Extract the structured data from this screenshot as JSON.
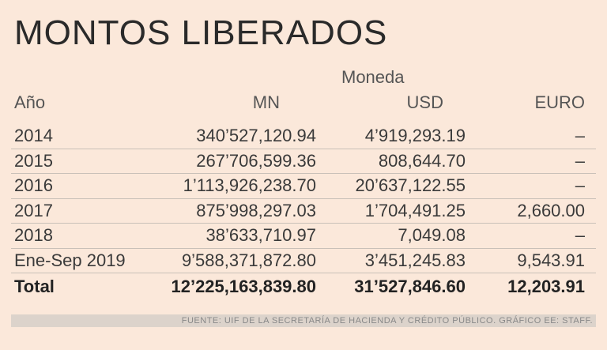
{
  "title": "MONTOS LIBERADOS",
  "group_header": "Moneda",
  "columns": {
    "anio": "Año",
    "mn": "MN",
    "usd": "USD",
    "euro": "EURO"
  },
  "rows": [
    {
      "anio": "2014",
      "mn": "340’527,120.94",
      "usd": "4’919,293.19",
      "euro": "–"
    },
    {
      "anio": "2015",
      "mn": "267’706,599.36",
      "usd": "808,644.70",
      "euro": "–"
    },
    {
      "anio": "2016",
      "mn": "1’113,926,238.70",
      "usd": "20’637,122.55",
      "euro": "–"
    },
    {
      "anio": "2017",
      "mn": "875’998,297.03",
      "usd": "1’704,491.25",
      "euro": "2,660.00"
    },
    {
      "anio": "2018",
      "mn": "38’633,710.97",
      "usd": "7,049.08",
      "euro": "–"
    },
    {
      "anio": "Ene-Sep 2019",
      "mn": "9’588,371,872.80",
      "usd": "3’451,245.83",
      "euro": "9,543.91"
    }
  ],
  "total": {
    "anio": "Total",
    "mn": "12’225,163,839.80",
    "usd": "31’527,846.60",
    "euro": "12,203.91"
  },
  "footer": "FUENTE: UIF DE LA SECRETARÍA DE HACIENDA Y CRÉDITO PÚBLICO. GRÁFICO EE: STAFF."
}
